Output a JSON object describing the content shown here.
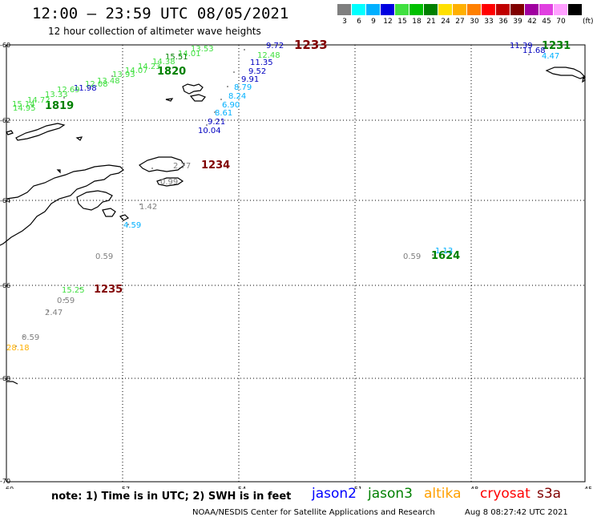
{
  "header": {
    "title": "12:00 – 23:59 UTC 08/05/2021",
    "subtitle": "12 hour collection of altimeter wave heights"
  },
  "color_scale": {
    "unit": "(ft)",
    "bins": [
      {
        "label": "3",
        "color": "#7f7f7f"
      },
      {
        "label": "6",
        "color": "#00ffff"
      },
      {
        "label": "9",
        "color": "#00b0ff"
      },
      {
        "label": "12",
        "color": "#0000e0"
      },
      {
        "label": "15",
        "color": "#40e040"
      },
      {
        "label": "18",
        "color": "#00c000"
      },
      {
        "label": "21",
        "color": "#008000"
      },
      {
        "label": "24",
        "color": "#ffe000"
      },
      {
        "label": "27",
        "color": "#ffb000"
      },
      {
        "label": "30",
        "color": "#ff8000"
      },
      {
        "label": "33",
        "color": "#ff0000"
      },
      {
        "label": "36",
        "color": "#c00000"
      },
      {
        "label": "39",
        "color": "#800000"
      },
      {
        "label": "42",
        "color": "#a000a0"
      },
      {
        "label": "45",
        "color": "#e040e0"
      },
      {
        "label": "70",
        "color": "#ffa0ff"
      },
      {
        "label": "",
        "color": "#000000"
      }
    ]
  },
  "axes": {
    "lat_labels": [
      "-60",
      "-62",
      "-64",
      "-66",
      "-68",
      "-70"
    ],
    "lon_labels": [
      "-60",
      "-57",
      "-54",
      "-51",
      "-48",
      "-45"
    ]
  },
  "track_labels": [
    {
      "text": "1233",
      "color": "#800000"
    },
    {
      "text": "1820",
      "color": "#008000"
    },
    {
      "text": "1819",
      "color": "#008000"
    },
    {
      "text": "1231",
      "color": "#008000"
    },
    {
      "text": "1234",
      "color": "#800000"
    },
    {
      "text": "1624",
      "color": "#008000"
    },
    {
      "text": "1235",
      "color": "#800000"
    }
  ],
  "swh_values": [
    {
      "text": "9.72",
      "color": "#0000c0"
    },
    {
      "text": "12.48",
      "color": "#40e040"
    },
    {
      "text": "11.35",
      "color": "#0000c0"
    },
    {
      "text": "9.52",
      "color": "#0000c0"
    },
    {
      "text": "9.91",
      "color": "#0000c0"
    },
    {
      "text": "8.79",
      "color": "#00b0ff"
    },
    {
      "text": "8.24",
      "color": "#00b0ff"
    },
    {
      "text": "6.90",
      "color": "#00b0ff"
    },
    {
      "text": "8.61",
      "color": "#00b0ff"
    },
    {
      "text": "9.21",
      "color": "#0000c0"
    },
    {
      "text": "10.04",
      "color": "#0000c0"
    },
    {
      "text": "13.53",
      "color": "#40e040"
    },
    {
      "text": "14.01",
      "color": "#40e040"
    },
    {
      "text": "15.51",
      "color": "#008000"
    },
    {
      "text": "14.38",
      "color": "#40e040"
    },
    {
      "text": "14.23",
      "color": "#40e040"
    },
    {
      "text": "14.07",
      "color": "#40e040"
    },
    {
      "text": "13.93",
      "color": "#40e040"
    },
    {
      "text": "13.48",
      "color": "#40e040"
    },
    {
      "text": "12.08",
      "color": "#40e040"
    },
    {
      "text": "11.98",
      "color": "#0000c0"
    },
    {
      "text": "12.69",
      "color": "#40e040"
    },
    {
      "text": "13.33",
      "color": "#40e040"
    },
    {
      "text": "14.72",
      "color": "#40e040"
    },
    {
      "text": "15.14",
      "color": "#40e040"
    },
    {
      "text": "14.95",
      "color": "#40e040"
    },
    {
      "text": "11.39",
      "color": "#0000c0"
    },
    {
      "text": "11.68",
      "color": "#0000c0"
    },
    {
      "text": "4.47",
      "color": "#00b0ff"
    },
    {
      "text": "2.77",
      "color": "#7f7f7f"
    },
    {
      "text": "0.99",
      "color": "#7f7f7f"
    },
    {
      "text": "1.42",
      "color": "#7f7f7f"
    },
    {
      "text": "4.59",
      "color": "#00b0ff"
    },
    {
      "text": "0.59",
      "color": "#7f7f7f"
    },
    {
      "text": "0.59",
      "color": "#7f7f7f"
    },
    {
      "text": "1.13",
      "color": "#00b0ff"
    },
    {
      "text": "15.25",
      "color": "#40e040"
    },
    {
      "text": "0.59",
      "color": "#7f7f7f"
    },
    {
      "text": "2.47",
      "color": "#7f7f7f"
    },
    {
      "text": "0.59",
      "color": "#7f7f7f"
    },
    {
      "text": "28.18",
      "color": "#ffb000"
    }
  ],
  "legend": {
    "note": "note:  1) Time is in UTC;  2) SWH is in feet",
    "satellites": [
      {
        "name": "jason2",
        "color": "#0000ff"
      },
      {
        "name": "jason3",
        "color": "#008000"
      },
      {
        "name": "altika",
        "color": "#ffa000"
      },
      {
        "name": "cryosat",
        "color": "#ff0000"
      },
      {
        "name": "s3a",
        "color": "#800000"
      }
    ]
  },
  "footer": {
    "credit": "NOAA/NESDIS Center for Satellite Applications and Research",
    "timestamp": "Aug  8 08:27:42 UTC 2021"
  }
}
